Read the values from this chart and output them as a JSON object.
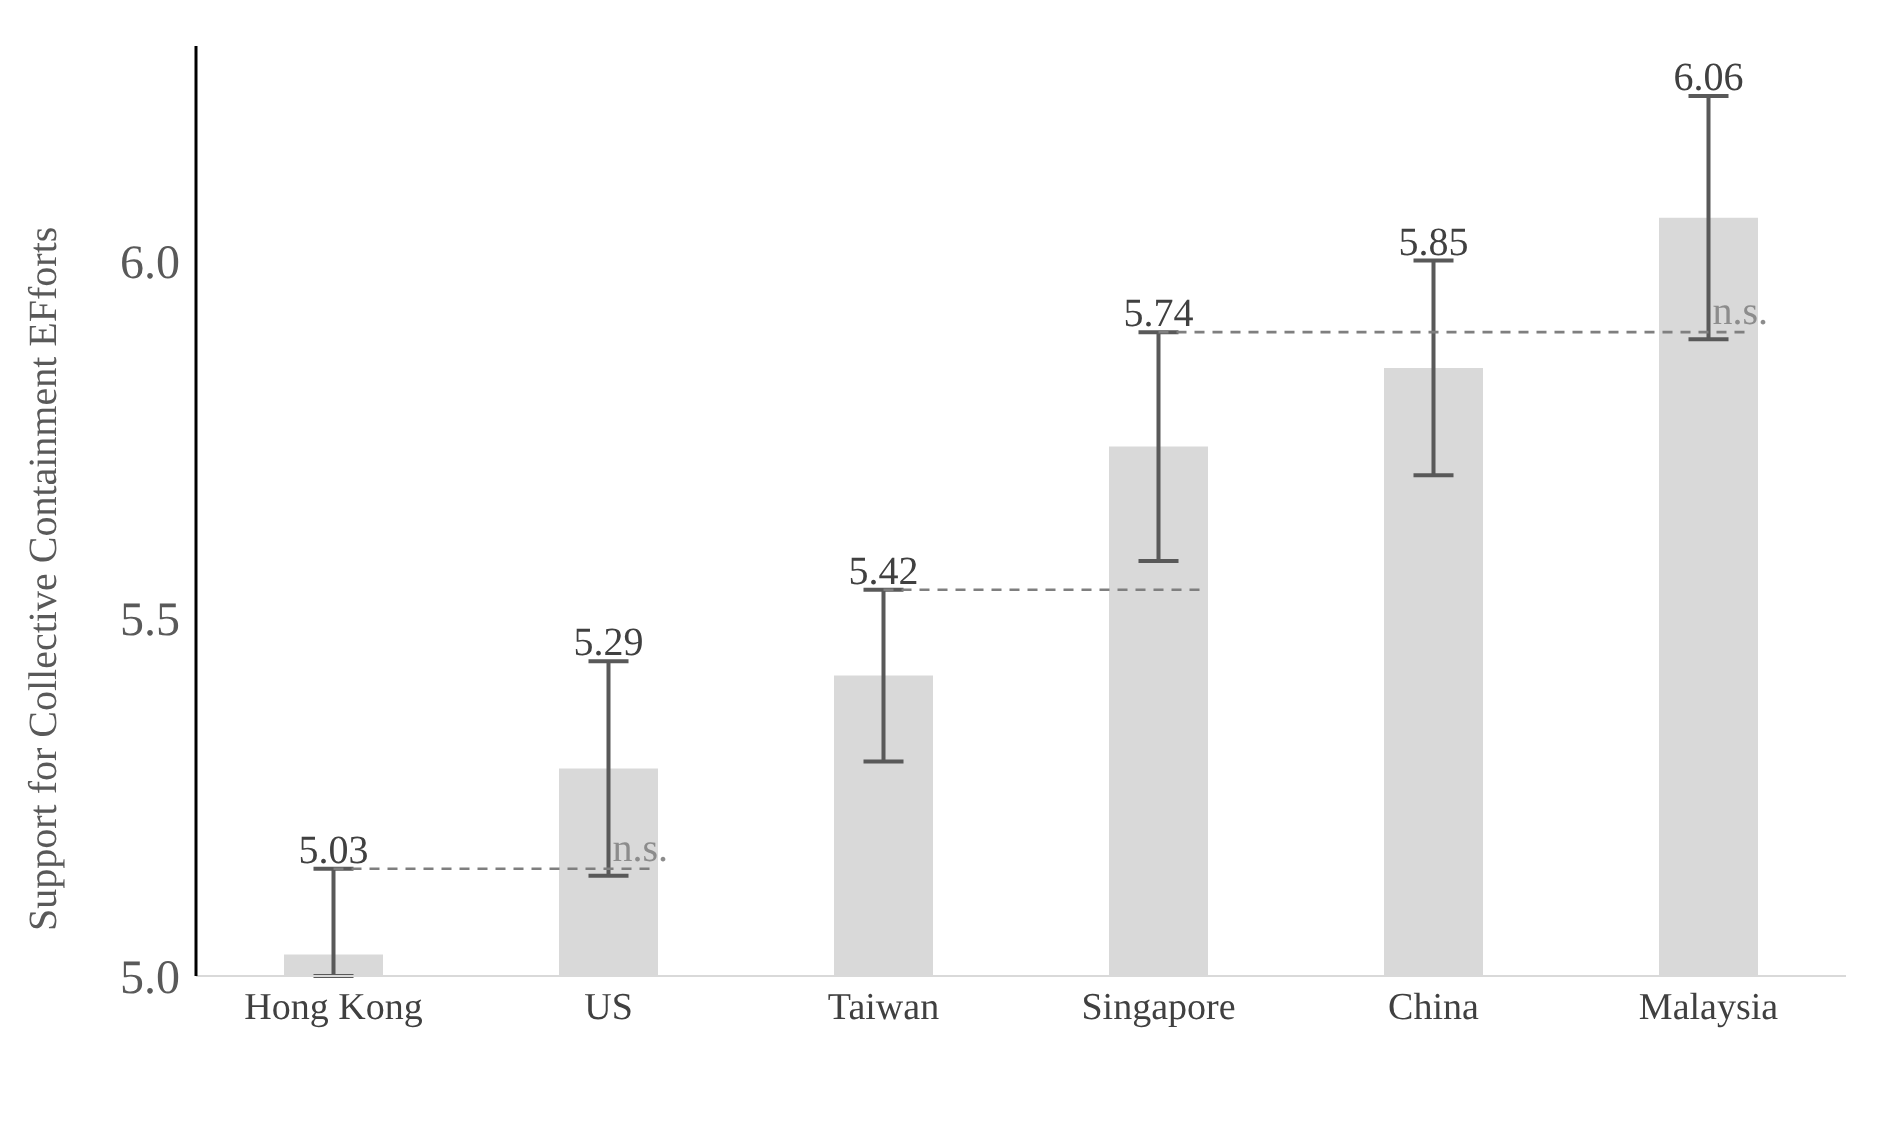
{
  "chart_data": {
    "type": "bar",
    "ylabel": "Support for Collective Containment EFforts",
    "categories": [
      "Hong Kong",
      "US",
      "Taiwan",
      "Singapore",
      "China",
      "Malaysia"
    ],
    "values": [
      5.03,
      5.29,
      5.42,
      5.74,
      5.85,
      6.06
    ],
    "errors": [
      [
        5.0,
        5.15
      ],
      0.15,
      0.12,
      0.16,
      0.15,
      0.17
    ],
    "color": "#d9d9d9",
    "ylim": [
      5.0,
      6.3
    ],
    "yticks": [
      {
        "value": 5.0,
        "label": "5.0"
      },
      {
        "value": 5.5,
        "label": "5.5"
      },
      {
        "value": 6.0,
        "label": "6.0"
      }
    ],
    "grid": false,
    "data_labels": true,
    "annotations": [
      {
        "text": "n.s.",
        "x": "US",
        "y": 5.15
      },
      {
        "text": "n.s.",
        "x": "Malaysia",
        "y": 5.9
      }
    ]
  }
}
